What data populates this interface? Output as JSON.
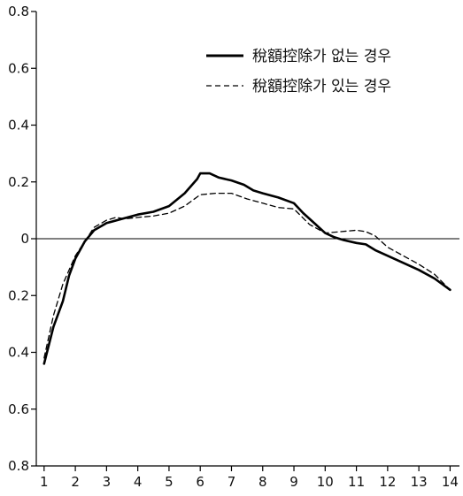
{
  "chart_data": {
    "type": "line",
    "title": "",
    "xlabel": "",
    "ylabel": "",
    "xlim": [
      0.75,
      14.3
    ],
    "ylim": [
      -0.8,
      0.8
    ],
    "x_ticks": [
      1,
      2,
      3,
      4,
      5,
      6,
      7,
      8,
      9,
      10,
      11,
      12,
      13,
      14
    ],
    "x_tick_labels": [
      "1",
      "2",
      "3",
      "4",
      "5",
      "6",
      "7",
      "8",
      "9",
      "10",
      "11",
      "12",
      "13",
      "14"
    ],
    "y_ticks": [
      0.8,
      0.6,
      0.4,
      0.2,
      0,
      -0.2,
      -0.4,
      -0.6,
      -0.8
    ],
    "y_tick_labels": [
      "0.8",
      "0.6",
      "0.4",
      "0.2",
      "0",
      "0.2",
      "0.4",
      "0.6",
      "0.8"
    ],
    "grid": false,
    "zero_line": true,
    "legend_position": "top-right",
    "series": [
      {
        "name": "稅額控除가 없는 경우",
        "style": "solid",
        "color": "#000000",
        "x": [
          1,
          1.3,
          1.6,
          1.8,
          2,
          2.3,
          2.6,
          3,
          3.5,
          4,
          4.5,
          5,
          5.5,
          5.9,
          6,
          6.3,
          6.6,
          7,
          7.4,
          7.7,
          8,
          8.5,
          9,
          9.3,
          9.7,
          10,
          10.3,
          10.6,
          11,
          11.3,
          11.6,
          12,
          12.5,
          13,
          13.5,
          14
        ],
        "y": [
          -0.44,
          -0.31,
          -0.22,
          -0.13,
          -0.07,
          -0.01,
          0.03,
          0.055,
          0.07,
          0.085,
          0.095,
          0.115,
          0.16,
          0.21,
          0.23,
          0.23,
          0.215,
          0.205,
          0.19,
          0.17,
          0.16,
          0.145,
          0.125,
          0.09,
          0.05,
          0.02,
          0.005,
          -0.005,
          -0.015,
          -0.02,
          -0.04,
          -0.06,
          -0.085,
          -0.11,
          -0.14,
          -0.18
        ]
      },
      {
        "name": "稅額控除가 있는 경우",
        "style": "dashed",
        "color": "#000000",
        "x": [
          1,
          1.3,
          1.6,
          2,
          2.3,
          2.6,
          3,
          3.3,
          3.6,
          4,
          4.5,
          5,
          5.5,
          6,
          6.5,
          7,
          7.5,
          8,
          8.5,
          9,
          9.5,
          10,
          10.5,
          11,
          11.3,
          11.6,
          12,
          12.5,
          13,
          13.5,
          14
        ],
        "y": [
          -0.42,
          -0.27,
          -0.16,
          -0.06,
          -0.01,
          0.04,
          0.065,
          0.075,
          0.07,
          0.075,
          0.08,
          0.09,
          0.115,
          0.155,
          0.16,
          0.16,
          0.14,
          0.125,
          0.11,
          0.105,
          0.05,
          0.02,
          0.025,
          0.03,
          0.025,
          0.01,
          -0.03,
          -0.06,
          -0.09,
          -0.125,
          -0.18
        ]
      }
    ]
  }
}
